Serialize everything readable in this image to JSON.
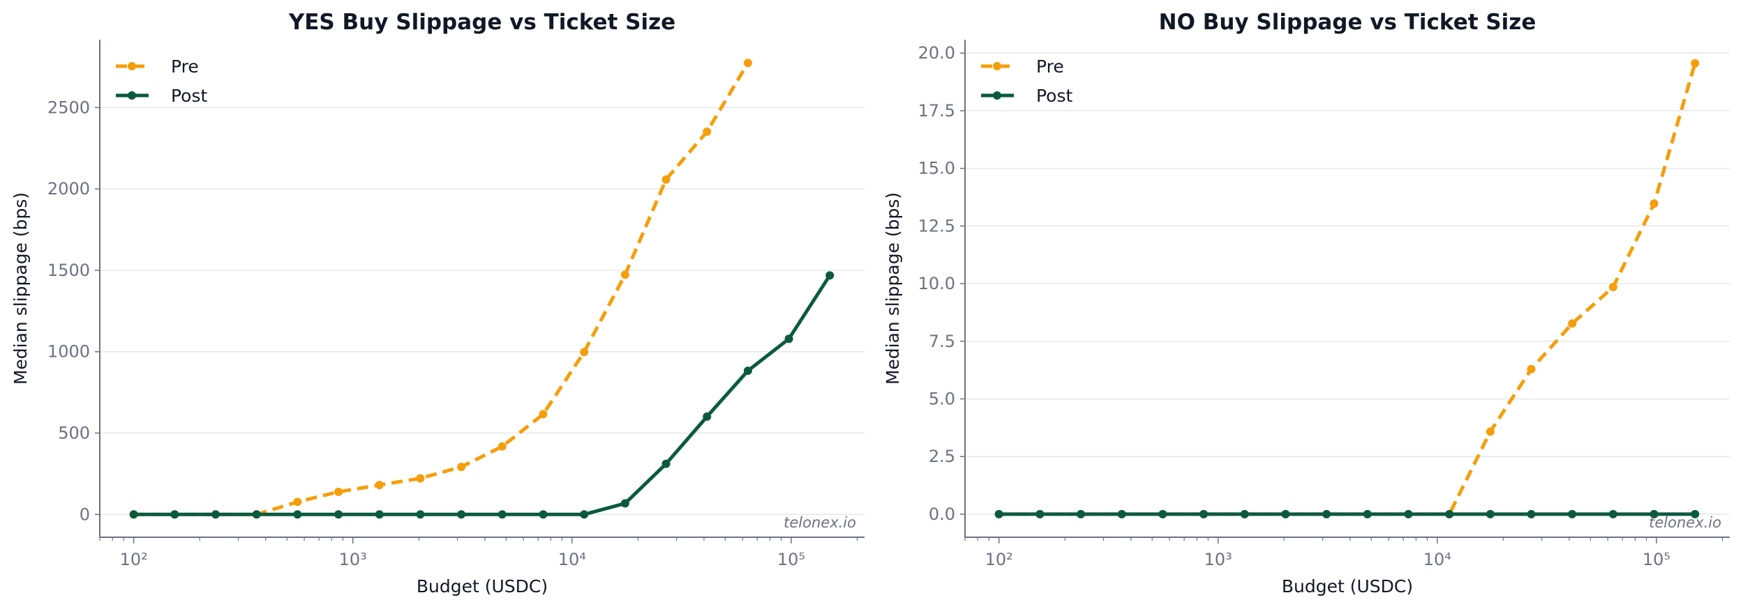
{
  "chart_data": [
    {
      "type": "line",
      "title": "YES Buy Slippage vs Ticket Size",
      "xlabel": "Budget (USDC)",
      "ylabel": "Median slippage (bps)",
      "xscale": "log",
      "xlim": [
        70,
        216000
      ],
      "ylim": [
        -140,
        2917
      ],
      "x_ticks": [
        100,
        1000,
        10000,
        100000
      ],
      "x_tick_labels": [
        "10²",
        "10³",
        "10⁴",
        "10⁵"
      ],
      "y_ticks": [
        0,
        500,
        1000,
        1500,
        2000,
        2500
      ],
      "y_tick_labels": [
        "0",
        "500",
        "1000",
        "1500",
        "2000",
        "2500"
      ],
      "grid": "horizontal",
      "legend": "top-left",
      "watermark": "telonex.io",
      "series": [
        {
          "name": "Pre",
          "color": "#f59e0b",
          "style": "dashed",
          "x": [
            100,
            150,
            225,
            338,
            507,
            761,
            1141,
            1712,
            2568,
            3852,
            5778,
            8667,
            13000,
            19500,
            29250,
            43875,
            65813
          ],
          "values": [
            0,
            0,
            0,
            0,
            77,
            139,
            181,
            222,
            292,
            418,
            616,
            998,
            1473,
            2058,
            2352,
            2774,
            null
          ]
        },
        {
          "name": "Post",
          "color": "#0b5a40",
          "style": "solid",
          "x": [
            100,
            150,
            225,
            338,
            507,
            761,
            1141,
            1712,
            2568,
            3852,
            5778,
            8667,
            13000,
            19500,
            29250,
            43875,
            65813,
            98720
          ],
          "values": [
            0,
            0,
            0,
            0,
            0,
            0,
            0,
            0,
            0,
            0,
            0,
            0,
            68,
            311,
            601,
            883,
            1079,
            1469
          ]
        }
      ]
    },
    {
      "type": "line",
      "title": "NO Buy Slippage vs Ticket Size",
      "xlabel": "Budget (USDC)",
      "ylabel": "Median slippage (bps)",
      "xscale": "log",
      "xlim": [
        70,
        216000
      ],
      "ylim": [
        -1.0,
        20.58
      ],
      "x_ticks": [
        100,
        1000,
        10000,
        100000
      ],
      "x_tick_labels": [
        "10²",
        "10³",
        "10⁴",
        "10⁵"
      ],
      "y_ticks": [
        0,
        2.5,
        5,
        7.5,
        10,
        12.5,
        15,
        17.5,
        20
      ],
      "y_tick_labels": [
        "0.0",
        "2.5",
        "5.0",
        "7.5",
        "10.0",
        "12.5",
        "15.0",
        "17.5",
        "20.0"
      ],
      "grid": "horizontal",
      "legend": "top-left",
      "watermark": "telonex.io",
      "series": [
        {
          "name": "Pre",
          "color": "#f59e0b",
          "style": "dashed",
          "values": [
            0,
            0,
            0,
            0,
            0,
            0,
            0,
            0,
            0,
            0,
            0,
            0,
            3.58,
            6.29,
            8.27,
            9.85,
            13.47,
            19.56
          ]
        },
        {
          "name": "Post",
          "color": "#0b5a40",
          "style": "solid",
          "values": [
            0,
            0,
            0,
            0,
            0,
            0,
            0,
            0,
            0,
            0,
            0,
            0,
            0,
            0,
            0,
            0,
            0,
            0
          ]
        }
      ]
    }
  ]
}
